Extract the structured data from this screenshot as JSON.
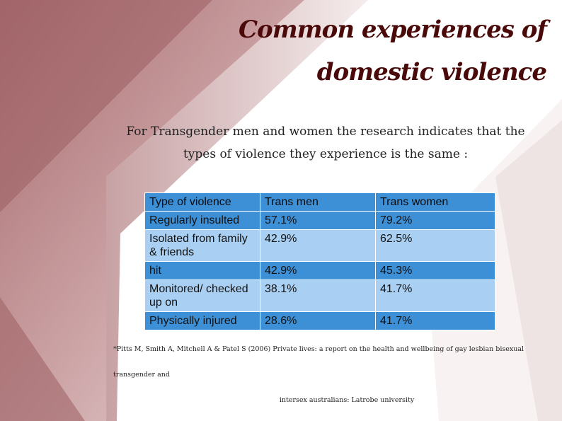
{
  "slide": {
    "title_line1": "Common experiences of",
    "title_line2": "domestic violence",
    "intro": "For Transgender men and women the research indicates that the types of violence they experience is the same :",
    "table": {
      "headers": [
        "Type of violence",
        "Trans men",
        "Trans women"
      ],
      "rows": [
        [
          "Regularly insulted",
          "57.1%",
          "79.2%"
        ],
        [
          "Isolated from family & friends",
          "42.9%",
          "62.5%"
        ],
        [
          "hit",
          "42.9%",
          "45.3%"
        ],
        [
          "Monitored/ checked up on",
          "38.1%",
          "41.7%"
        ],
        [
          "Physically injured",
          "28.6%",
          "41.7%"
        ]
      ]
    },
    "reference_line1": "*Pitts M, Smith A, Mitchell A & Patel S (2006) Private lives: a report on the health and wellbeing of gay lesbian bisexual transgender and",
    "reference_line2": "intersex australians: Latrobe university"
  },
  "colors": {
    "background_accent": "#b98386",
    "title": "#4a0a0a",
    "table_dark": "#3d8fd6",
    "table_light": "#a9d0f2"
  }
}
